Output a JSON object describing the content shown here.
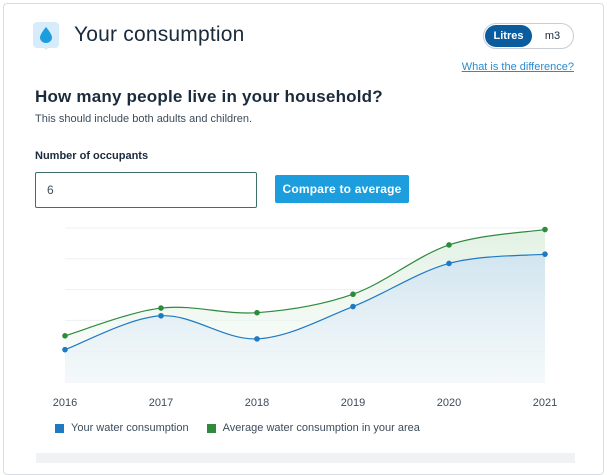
{
  "header": {
    "title": "Your consumption",
    "icon": "water-drop-icon",
    "units": {
      "active": "Litres",
      "inactive": "m3"
    },
    "help_link": "What is the difference?"
  },
  "form": {
    "question": "How many people live in your household?",
    "hint": "This should include both adults and children.",
    "occupants_label": "Number of occupants",
    "occupants_value": "6",
    "compare_button": "Compare to average"
  },
  "colors": {
    "yours": "#1f7ac4",
    "average": "#2e8b3e",
    "accent": "#1c9ede"
  },
  "legend": {
    "yours": "Your water consumption",
    "average": "Average water consumption in your area"
  },
  "chart_data": {
    "type": "area",
    "categories": [
      "2016",
      "2017",
      "2018",
      "2019",
      "2020",
      "2021"
    ],
    "ylim": [
      0,
      100
    ],
    "grid": true,
    "legend_position": "bottom-left",
    "series": [
      {
        "name": "Your water consumption",
        "key": "yours",
        "values": [
          21,
          43,
          28,
          49,
          77,
          83
        ]
      },
      {
        "name": "Average water consumption in your area",
        "key": "average",
        "values": [
          30,
          48,
          45,
          57,
          89,
          99
        ]
      }
    ]
  }
}
